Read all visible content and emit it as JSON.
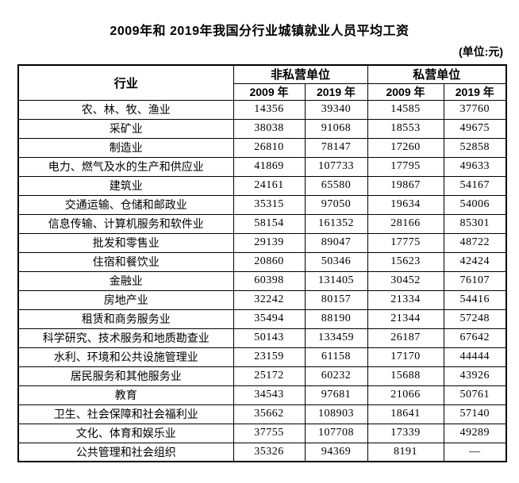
{
  "title": "2009年和 2019年我国分行业城镇就业人员平均工资",
  "unit_note": "(单位:元)",
  "table": {
    "header": {
      "industry": "行业",
      "group_non_private": "非私营单位",
      "group_private": "私营单位",
      "year_cols": [
        "2009 年",
        "2019 年",
        "2009 年",
        "2019 年"
      ]
    },
    "rows": [
      {
        "industry": "农、林、牧、渔业",
        "values": [
          "14356",
          "39340",
          "14585",
          "37760"
        ]
      },
      {
        "industry": "采矿业",
        "values": [
          "38038",
          "91068",
          "18553",
          "49675"
        ]
      },
      {
        "industry": "制造业",
        "values": [
          "26810",
          "78147",
          "17260",
          "52858"
        ]
      },
      {
        "industry": "电力、燃气及水的生产和供应业",
        "values": [
          "41869",
          "107733",
          "17795",
          "49633"
        ]
      },
      {
        "industry": "建筑业",
        "values": [
          "24161",
          "65580",
          "19867",
          "54167"
        ]
      },
      {
        "industry": "交通运输、仓储和邮政业",
        "values": [
          "35315",
          "97050",
          "19634",
          "54006"
        ]
      },
      {
        "industry": "信息传输、计算机服务和软件业",
        "values": [
          "58154",
          "161352",
          "28166",
          "85301"
        ]
      },
      {
        "industry": "批发和零售业",
        "values": [
          "29139",
          "89047",
          "17775",
          "48722"
        ]
      },
      {
        "industry": "住宿和餐饮业",
        "values": [
          "20860",
          "50346",
          "15623",
          "42424"
        ]
      },
      {
        "industry": "金融业",
        "values": [
          "60398",
          "131405",
          "30452",
          "76107"
        ]
      },
      {
        "industry": "房地产业",
        "values": [
          "32242",
          "80157",
          "21334",
          "54416"
        ]
      },
      {
        "industry": "租赁和商务服务业",
        "values": [
          "35494",
          "88190",
          "21344",
          "57248"
        ]
      },
      {
        "industry": "科学研究、技术服务和地质勘查业",
        "values": [
          "50143",
          "133459",
          "26187",
          "67642"
        ]
      },
      {
        "industry": "水利、环境和公共设施管理业",
        "values": [
          "23159",
          "61158",
          "17170",
          "44444"
        ]
      },
      {
        "industry": "居民服务和其他服务业",
        "values": [
          "25172",
          "60232",
          "15688",
          "43926"
        ]
      },
      {
        "industry": "教育",
        "values": [
          "34543",
          "97681",
          "21066",
          "50761"
        ]
      },
      {
        "industry": "卫生、社会保障和社会福利业",
        "values": [
          "35662",
          "108903",
          "18641",
          "57140"
        ]
      },
      {
        "industry": "文化、体育和娱乐业",
        "values": [
          "37755",
          "107708",
          "17339",
          "49289"
        ]
      },
      {
        "industry": "公共管理和社会组织",
        "values": [
          "35326",
          "94369",
          "8191",
          "—"
        ]
      }
    ]
  },
  "colors": {
    "text": "#000000",
    "background": "#ffffff",
    "border": "#000000"
  }
}
